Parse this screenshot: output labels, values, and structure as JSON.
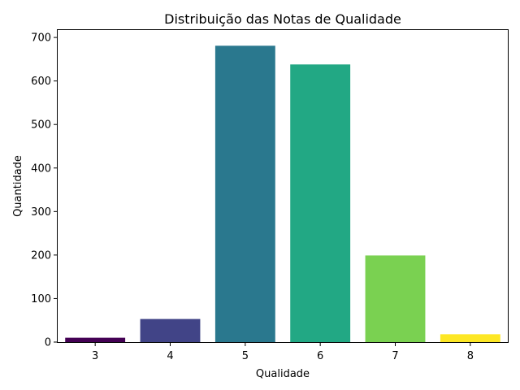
{
  "chart_data": {
    "type": "bar",
    "title": "Distribuição das Notas de Qualidade",
    "xlabel": "Qualidade",
    "ylabel": "Quantidade",
    "categories": [
      "3",
      "4",
      "5",
      "6",
      "7",
      "8"
    ],
    "values": [
      10,
      53,
      681,
      638,
      199,
      18
    ],
    "colors": [
      "#440154",
      "#414487",
      "#2a788e",
      "#22a884",
      "#7ad151",
      "#fde725"
    ],
    "ylim": [
      0,
      717
    ],
    "yticks": [
      0,
      100,
      200,
      300,
      400,
      500,
      600,
      700
    ],
    "grid": false,
    "legend": "none"
  }
}
